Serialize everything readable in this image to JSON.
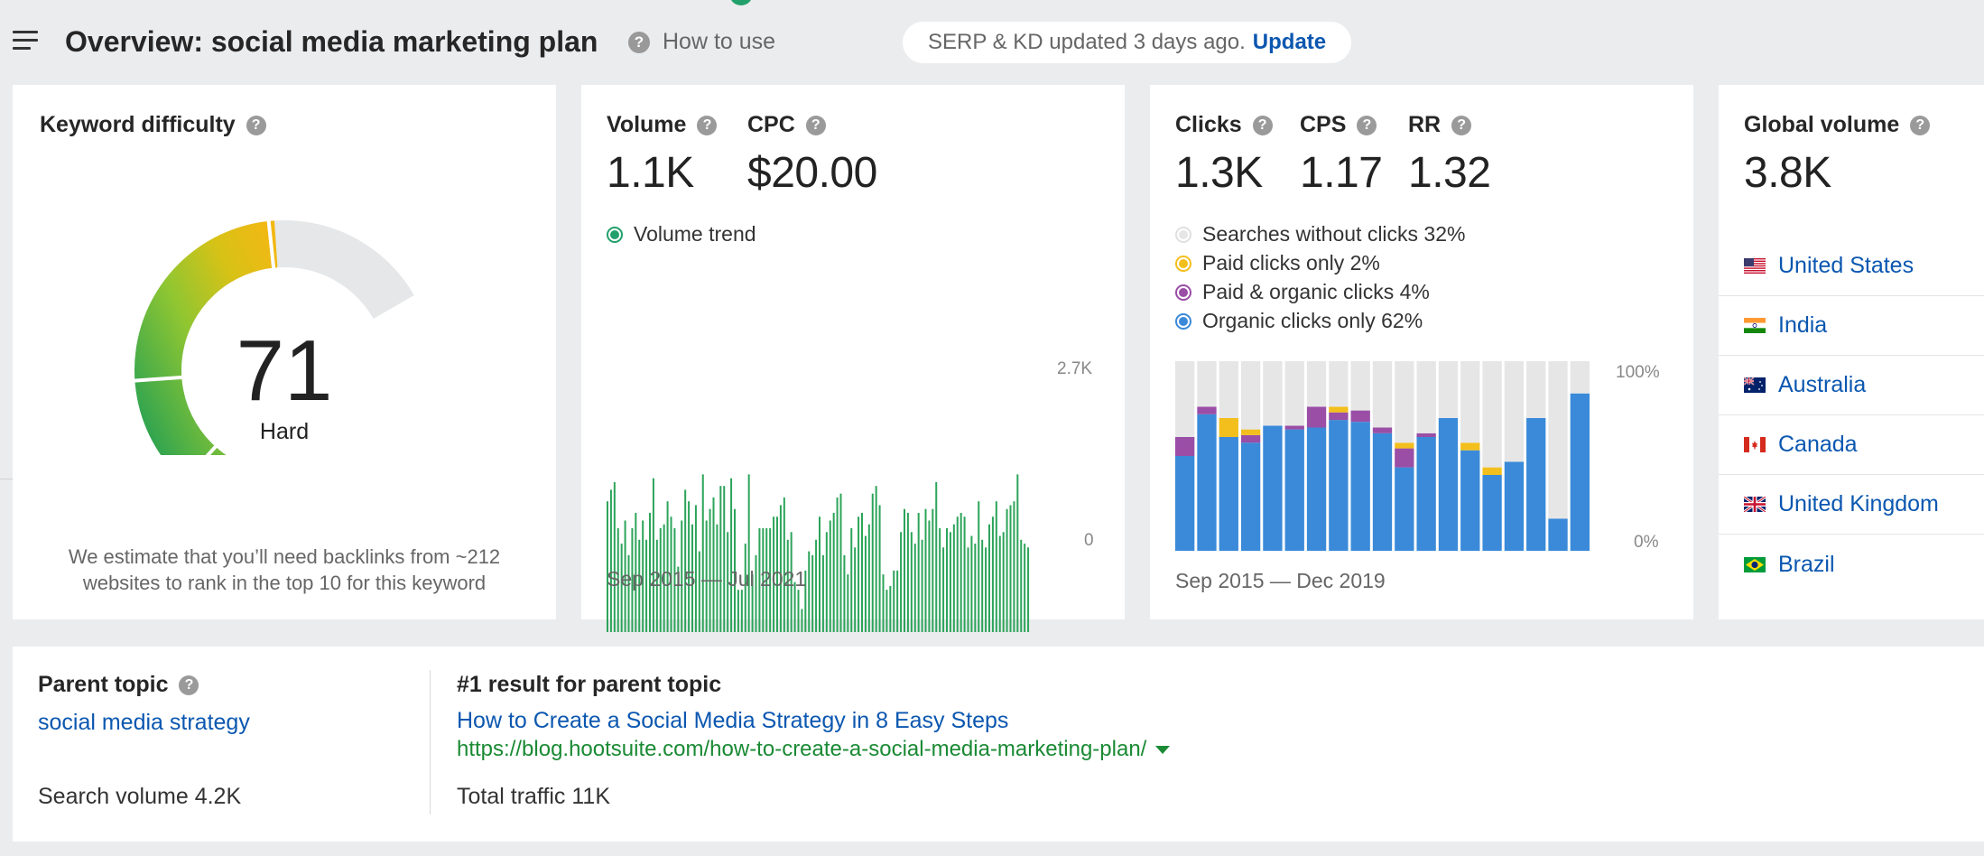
{
  "header": {
    "title": "Overview: social media marketing plan",
    "how_to_use": "How to use",
    "serp_status": "SERP & KD updated 3 days ago.",
    "update_label": "Update"
  },
  "kd_card": {
    "label": "Keyword difficulty",
    "score": "71",
    "score_value": 71,
    "rating": "Hard",
    "note": "We estimate that you’ll need backlinks from ~212 websites to rank in the top 10 for this keyword"
  },
  "volume_card": {
    "volume_label": "Volume",
    "volume_value": "1.1K",
    "cpc_label": "CPC",
    "cpc_value": "$20.00",
    "trend_label": "Volume trend",
    "y_max_label": "2.7K",
    "y_min_label": "0",
    "date_range": "Sep 2015 — Jul 2021"
  },
  "clicks_card": {
    "clicks_label": "Clicks",
    "clicks_value": "1.3K",
    "cps_label": "CPS",
    "cps_value": "1.17",
    "rr_label": "RR",
    "rr_value": "1.32",
    "legend": [
      {
        "label": "Searches without clicks 32%",
        "color": "#e6e6e6",
        "ring": "#e0e0e0"
      },
      {
        "label": "Paid clicks only 2%",
        "color": "#f2bf1d",
        "ring": "#f2bf1d"
      },
      {
        "label": "Paid & organic clicks 4%",
        "color": "#9a4ea6",
        "ring": "#9a4ea6"
      },
      {
        "label": "Organic clicks only 62%",
        "color": "#3a8ad9",
        "ring": "#3a8ad9"
      }
    ],
    "y_max_label": "100%",
    "y_min_label": "0%",
    "date_range": "Sep 2015 — Dec 2019"
  },
  "global_card": {
    "label": "Global volume",
    "value": "3.8K",
    "countries": [
      {
        "name": "United States",
        "flag": "us-flag-icon"
      },
      {
        "name": "India",
        "flag": "in-flag-icon"
      },
      {
        "name": "Australia",
        "flag": "au-flag-icon"
      },
      {
        "name": "Canada",
        "flag": "ca-flag-icon"
      },
      {
        "name": "United Kingdom",
        "flag": "uk-flag-icon"
      },
      {
        "name": "Brazil",
        "flag": "br-flag-icon"
      }
    ]
  },
  "parent_topic": {
    "label": "Parent topic",
    "topic": "social media strategy",
    "search_volume": "Search volume 4.2K",
    "result_label": "#1 result for parent topic",
    "result_title": "How to Create a Social Media Strategy in 8 Easy Steps",
    "result_url": "https://blog.hootsuite.com/how-to-create-a-social-media-marketing-plan/",
    "total_traffic": "Total traffic 11K"
  },
  "colors": {
    "link": "#0b57b0",
    "green": "#22a06b",
    "bar_green": "#2ca45a"
  },
  "chart_data": [
    {
      "type": "bar",
      "series": [
        {
          "name": "Volume trend",
          "values": [
            1700,
            1850,
            1950,
            1350,
            1150,
            1450,
            1000,
            1350,
            1550,
            1200,
            1450,
            1200,
            1550,
            2000,
            1200,
            1350,
            1400,
            1700,
            1500,
            1350,
            850,
            1450,
            1850,
            1700,
            1400,
            1650,
            1050,
            2050,
            1450,
            1600,
            1750,
            1400,
            1900,
            1900,
            1300,
            2000,
            1600,
            550,
            550,
            1150,
            2050,
            750,
            1000,
            1350,
            1350,
            1350,
            1350,
            1500,
            1500,
            1650,
            1750,
            1200,
            1300,
            650,
            550,
            300,
            800,
            1050,
            1000,
            1200,
            1500,
            1000,
            1300,
            1450,
            1550,
            1750,
            1800,
            1000,
            750,
            1350,
            1100,
            1500,
            1550,
            1250,
            1400,
            1800,
            1900,
            1650,
            750,
            550,
            600,
            800,
            800,
            1300,
            1600,
            1550,
            1300,
            1150,
            1550,
            1200,
            1600,
            1450,
            1600,
            1950,
            1350,
            1100,
            1350,
            1300,
            1400,
            1500,
            1550,
            1500,
            1100,
            1250,
            1150,
            1700,
            1200,
            1100,
            1400,
            1500,
            1700,
            1250,
            1300,
            1600,
            1650,
            1700,
            2050,
            1200,
            1150,
            1100
          ],
          "color": "#2ca45a"
        }
      ],
      "ylim": [
        0,
        2700
      ],
      "tick_labels": [
        "2.7K",
        "0"
      ],
      "x_range": "Sep 2015 — Jul 2021"
    },
    {
      "type": "bar",
      "stacked": true,
      "series": [
        {
          "name": "Organic clicks only",
          "color": "#3a8ad9",
          "values": [
            50,
            72,
            60,
            57,
            66,
            64,
            65,
            69,
            68,
            62,
            44,
            60,
            70,
            53,
            40,
            47,
            70,
            17,
            83
          ]
        },
        {
          "name": "Paid & organic clicks",
          "color": "#9a4ea6",
          "values": [
            10,
            4,
            0,
            4,
            0,
            2,
            11,
            4,
            6,
            3,
            10,
            2,
            0,
            0,
            0,
            0,
            0,
            0,
            0
          ]
        },
        {
          "name": "Paid clicks only",
          "color": "#f2bf1d",
          "values": [
            0,
            0,
            10,
            3,
            0,
            0,
            0,
            3,
            0,
            0,
            3,
            0,
            0,
            4,
            4,
            0,
            0,
            0,
            0
          ]
        },
        {
          "name": "Searches without clicks",
          "color": "#e6e6e6",
          "values": [
            40,
            24,
            30,
            36,
            34,
            34,
            24,
            24,
            26,
            35,
            43,
            38,
            30,
            43,
            56,
            53,
            30,
            83,
            17
          ]
        }
      ],
      "ylim": [
        0,
        100
      ],
      "tick_labels": [
        "100%",
        "0%"
      ],
      "x_range": "Sep 2015 — Dec 2019"
    }
  ]
}
